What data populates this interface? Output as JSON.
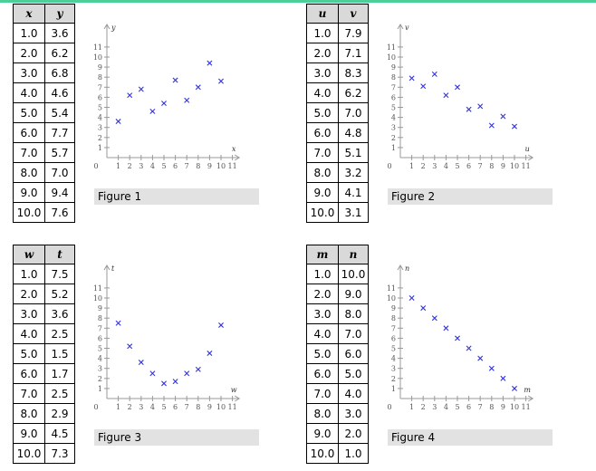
{
  "colors": {
    "marker": "#3333dd",
    "axis": "#999999",
    "caption_bg": "#e2e2e2",
    "header_bg": "#d9d9d9"
  },
  "chart_data": [
    {
      "type": "scatter",
      "xlabel": "x",
      "ylabel": "y",
      "caption": "Figure 1",
      "xlim": [
        0,
        11
      ],
      "ylim": [
        0,
        11
      ],
      "x": [
        "1.0",
        "2.0",
        "3.0",
        "4.0",
        "5.0",
        "6.0",
        "7.0",
        "8.0",
        "9.0",
        "10.0"
      ],
      "y": [
        "3.6",
        "6.2",
        "6.8",
        "4.6",
        "5.4",
        "7.7",
        "5.7",
        "7.0",
        "9.4",
        "7.6"
      ]
    },
    {
      "type": "scatter",
      "xlabel": "u",
      "ylabel": "v",
      "caption": "Figure 2",
      "xlim": [
        0,
        11
      ],
      "ylim": [
        0,
        11
      ],
      "x": [
        "1.0",
        "2.0",
        "3.0",
        "4.0",
        "5.0",
        "6.0",
        "7.0",
        "8.0",
        "9.0",
        "10.0"
      ],
      "y": [
        "7.9",
        "7.1",
        "8.3",
        "6.2",
        "7.0",
        "4.8",
        "5.1",
        "3.2",
        "4.1",
        "3.1"
      ]
    },
    {
      "type": "scatter",
      "xlabel": "w",
      "ylabel": "t",
      "caption": "Figure 3",
      "xlim": [
        0,
        11
      ],
      "ylim": [
        0,
        11
      ],
      "x": [
        "1.0",
        "2.0",
        "3.0",
        "4.0",
        "5.0",
        "6.0",
        "7.0",
        "8.0",
        "9.0",
        "10.0"
      ],
      "y": [
        "7.5",
        "5.2",
        "3.6",
        "2.5",
        "1.5",
        "1.7",
        "2.5",
        "2.9",
        "4.5",
        "7.3"
      ]
    },
    {
      "type": "scatter",
      "xlabel": "m",
      "ylabel": "n",
      "caption": "Figure 4",
      "xlim": [
        0,
        11
      ],
      "ylim": [
        0,
        11
      ],
      "x": [
        "1.0",
        "2.0",
        "3.0",
        "4.0",
        "5.0",
        "6.0",
        "7.0",
        "8.0",
        "9.0",
        "10.0"
      ],
      "y": [
        "10.0",
        "9.0",
        "8.0",
        "7.0",
        "6.0",
        "5.0",
        "4.0",
        "3.0",
        "2.0",
        "1.0"
      ]
    }
  ],
  "axis_ticks": [
    "0",
    "1",
    "2",
    "3",
    "4",
    "5",
    "6",
    "7",
    "8",
    "9",
    "10",
    "11"
  ],
  "tick_labels_y": [
    "1",
    "2",
    "3",
    "4",
    "5",
    "6",
    "7",
    "8",
    "9",
    "10",
    "11"
  ]
}
